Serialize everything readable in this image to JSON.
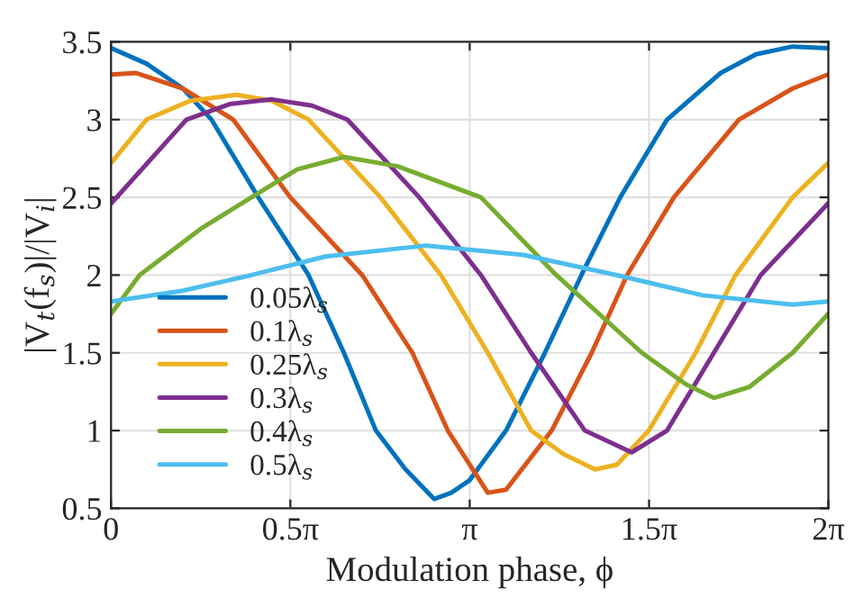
{
  "chart_data": {
    "type": "line",
    "xlabel": "Modulation phase, ϕ",
    "ylabel": "|V$_{t}$(f$_{s}$)|/|V$_{i}$|",
    "xlim": [
      0,
      6.2832
    ],
    "xticks": [
      0,
      {
        "value": 1.5708,
        "label": "0.5π"
      },
      {
        "value": 3.1416,
        "label": "π"
      },
      {
        "value": 4.7124,
        "label": "1.5π"
      },
      {
        "value": 6.2832,
        "label": "2π"
      }
    ],
    "ylim": [
      0.5,
      3.5
    ],
    "yticks": [
      0.5,
      1,
      1.5,
      2,
      2.5,
      3,
      3.5
    ],
    "grid": true,
    "legend": "bottom left",
    "marker": "none",
    "line_style": "solid",
    "series": [
      {
        "name": "0.05λ$_{s}$",
        "color": "#0072bd",
        "x": [
          0,
          0.31,
          0.63,
          0.88,
          1.29,
          1.73,
          2.04,
          2.32,
          2.58,
          2.83,
          2.98,
          3.14,
          3.46,
          3.8,
          4.12,
          4.46,
          4.87,
          5.34,
          5.65,
          5.97,
          6.28
        ],
        "values": [
          3.46,
          3.36,
          3.2,
          3.0,
          2.5,
          2.0,
          1.5,
          1.0,
          0.75,
          0.56,
          0.6,
          0.68,
          1.0,
          1.5,
          2.0,
          2.5,
          3.0,
          3.3,
          3.42,
          3.47,
          3.46
        ]
      },
      {
        "name": "0.1λ$_{s}$",
        "color": "#d95319",
        "x": [
          0,
          0.22,
          0.63,
          1.07,
          1.57,
          2.2,
          2.64,
          2.95,
          3.3,
          3.46,
          3.86,
          4.21,
          4.52,
          4.93,
          5.5,
          5.97,
          6.28
        ],
        "values": [
          3.29,
          3.3,
          3.2,
          3.0,
          2.5,
          2.0,
          1.5,
          1.0,
          0.6,
          0.62,
          1.0,
          1.5,
          2.0,
          2.5,
          3.0,
          3.2,
          3.29
        ]
      },
      {
        "name": "0.25λ$_{s}$",
        "color": "#edb120",
        "x": [
          0,
          0.31,
          0.69,
          1.1,
          1.41,
          1.73,
          2.36,
          2.89,
          3.3,
          3.68,
          3.96,
          4.24,
          4.43,
          4.71,
          5.12,
          5.47,
          5.97,
          6.28
        ],
        "values": [
          2.72,
          3.0,
          3.12,
          3.16,
          3.12,
          3.0,
          2.5,
          2.0,
          1.5,
          1.0,
          0.85,
          0.75,
          0.78,
          1.0,
          1.5,
          2.0,
          2.5,
          2.72
        ]
      },
      {
        "name": "0.3λ$_{s}$",
        "color": "#7e2f8e",
        "x": [
          0,
          0.66,
          1.04,
          1.41,
          1.76,
          2.07,
          2.7,
          3.24,
          3.68,
          4.15,
          4.56,
          4.87,
          5.28,
          5.69,
          6.28
        ],
        "values": [
          2.46,
          3.0,
          3.1,
          3.13,
          3.09,
          3.0,
          2.5,
          2.0,
          1.5,
          1.0,
          0.86,
          1.0,
          1.5,
          2.0,
          2.46
        ]
      },
      {
        "name": "0.4λ$_{s}$",
        "color": "#77ac30",
        "x": [
          0,
          0.25,
          0.79,
          1.23,
          1.63,
          2.04,
          2.51,
          3.24,
          3.9,
          4.65,
          5.03,
          5.28,
          5.59,
          5.97,
          6.28
        ],
        "values": [
          1.75,
          2.0,
          2.3,
          2.5,
          2.68,
          2.76,
          2.7,
          2.5,
          2.0,
          1.5,
          1.3,
          1.21,
          1.28,
          1.5,
          1.75
        ]
      },
      {
        "name": "0.5λ$_{s}$",
        "color": "#4dbeee",
        "x": [
          0,
          0.63,
          1.23,
          1.88,
          2.76,
          3.61,
          4.43,
          5.18,
          5.97,
          6.28
        ],
        "values": [
          1.83,
          1.9,
          2.0,
          2.12,
          2.19,
          2.13,
          2.0,
          1.87,
          1.81,
          1.83
        ]
      }
    ]
  }
}
